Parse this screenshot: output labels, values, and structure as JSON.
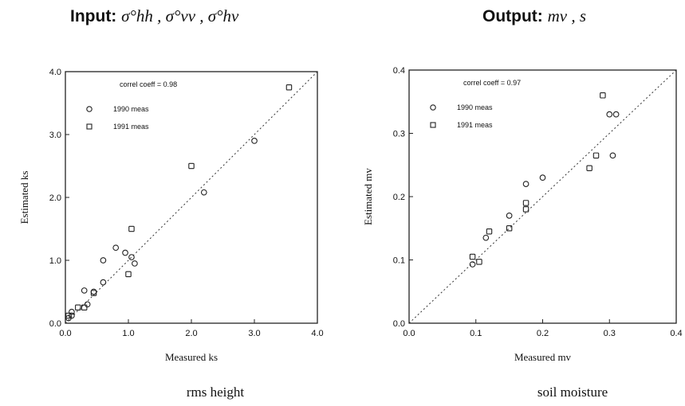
{
  "headings": {
    "left_prefix": "Input:",
    "left_symbols": "σ°hh , σ°vv , σ°hv",
    "right_prefix": "Output:",
    "right_symbols": "mv , s"
  },
  "captions": {
    "left": "rms height",
    "right": "soil moisture"
  },
  "chart_data": [
    {
      "type": "scatter",
      "xlabel": "Measured ks",
      "ylabel": "Estimated ks",
      "xlim": [
        0,
        4
      ],
      "ylim": [
        0,
        4
      ],
      "xticks": [
        0,
        1,
        2,
        3,
        4
      ],
      "yticks": [
        0,
        1,
        2,
        3,
        4
      ],
      "xtick_labels": [
        "0.0",
        "1.0",
        "2.0",
        "3.0",
        "4.0"
      ],
      "ytick_labels": [
        "0.0",
        "1.0",
        "2.0",
        "3.0",
        "4.0"
      ],
      "annotation": "correl coeff = 0.98",
      "reference_line": "y = x (dotted)",
      "series": [
        {
          "name": "1990 meas",
          "marker": "circle",
          "points": [
            [
              0.05,
              0.08
            ],
            [
              0.1,
              0.12
            ],
            [
              0.1,
              0.18
            ],
            [
              0.3,
              0.52
            ],
            [
              0.35,
              0.3
            ],
            [
              0.45,
              0.5
            ],
            [
              0.6,
              1.0
            ],
            [
              0.6,
              0.65
            ],
            [
              0.8,
              1.2
            ],
            [
              0.95,
              1.12
            ],
            [
              1.05,
              1.05
            ],
            [
              1.1,
              0.95
            ],
            [
              2.2,
              2.08
            ],
            [
              3.0,
              2.9
            ]
          ]
        },
        {
          "name": "1991 meas",
          "marker": "square",
          "points": [
            [
              0.05,
              0.12
            ],
            [
              0.2,
              0.25
            ],
            [
              0.3,
              0.25
            ],
            [
              0.45,
              0.48
            ],
            [
              1.0,
              0.78
            ],
            [
              1.05,
              1.5
            ],
            [
              2.0,
              2.5
            ],
            [
              3.55,
              3.75
            ]
          ]
        }
      ]
    },
    {
      "type": "scatter",
      "xlabel": "Measured mv",
      "ylabel": "Estimated mv",
      "xlim": [
        0,
        0.4
      ],
      "ylim": [
        0,
        0.4
      ],
      "xticks": [
        0,
        0.1,
        0.2,
        0.3,
        0.4
      ],
      "yticks": [
        0,
        0.1,
        0.2,
        0.3,
        0.4
      ],
      "xtick_labels": [
        "0.0",
        "0.1",
        "0.2",
        "0.3",
        "0.4"
      ],
      "ytick_labels": [
        "0.0",
        "0.1",
        "0.2",
        "0.3",
        "0.4"
      ],
      "annotation": "correl coeff = 0.97",
      "reference_line": "y = x (dotted)",
      "series": [
        {
          "name": "1990 meas",
          "marker": "circle",
          "points": [
            [
              0.095,
              0.093
            ],
            [
              0.115,
              0.135
            ],
            [
              0.15,
              0.17
            ],
            [
              0.175,
              0.22
            ],
            [
              0.2,
              0.23
            ],
            [
              0.3,
              0.33
            ],
            [
              0.305,
              0.265
            ],
            [
              0.31,
              0.33
            ]
          ]
        },
        {
          "name": "1991 meas",
          "marker": "square",
          "points": [
            [
              0.095,
              0.105
            ],
            [
              0.105,
              0.097
            ],
            [
              0.12,
              0.145
            ],
            [
              0.15,
              0.15
            ],
            [
              0.175,
              0.19
            ],
            [
              0.175,
              0.18
            ],
            [
              0.27,
              0.245
            ],
            [
              0.28,
              0.265
            ],
            [
              0.29,
              0.36
            ]
          ]
        }
      ]
    }
  ]
}
